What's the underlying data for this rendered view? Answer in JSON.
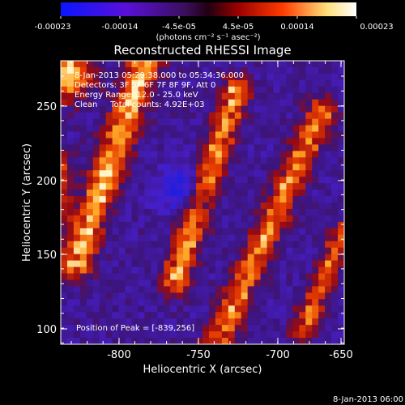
{
  "colorbar": {
    "tick_labels": [
      "-0.00023",
      "-0.00014",
      "-4.5e-05",
      "4.5e-05",
      "0.00014",
      "0.00023"
    ],
    "units": "(photons cm⁻² s⁻¹ asec⁻²)",
    "colormap": [
      "#0a16ff",
      "#5a10d8",
      "#3a0f5c",
      "#9a0000",
      "#ff3a00",
      "#ffe07a",
      "#ffffff"
    ]
  },
  "title": "Reconstructed RHESSI Image",
  "annotations": {
    "time_range": "8-Jan-2013 05:29:38.000 to 05:34:36.000",
    "detectors": "Detectors: 3F 5F 6F 7F 8F 9F, Att 0",
    "energy_range": "Energy Range: 12.0 - 25.0 keV",
    "clean": "Clean     Total counts: 4.92E+03",
    "peak": "Position of Peak = [-839,256]"
  },
  "axes": {
    "xlabel": "Heliocentric X (arcsec)",
    "ylabel": "Heliocentric Y (arcsec)",
    "x_ticks": [
      "-800",
      "-750",
      "-700",
      "-650"
    ],
    "y_ticks": [
      "250",
      "200",
      "150",
      "100"
    ]
  },
  "footer": {
    "date_stamp": "8-Jan-2013 06:00"
  }
}
